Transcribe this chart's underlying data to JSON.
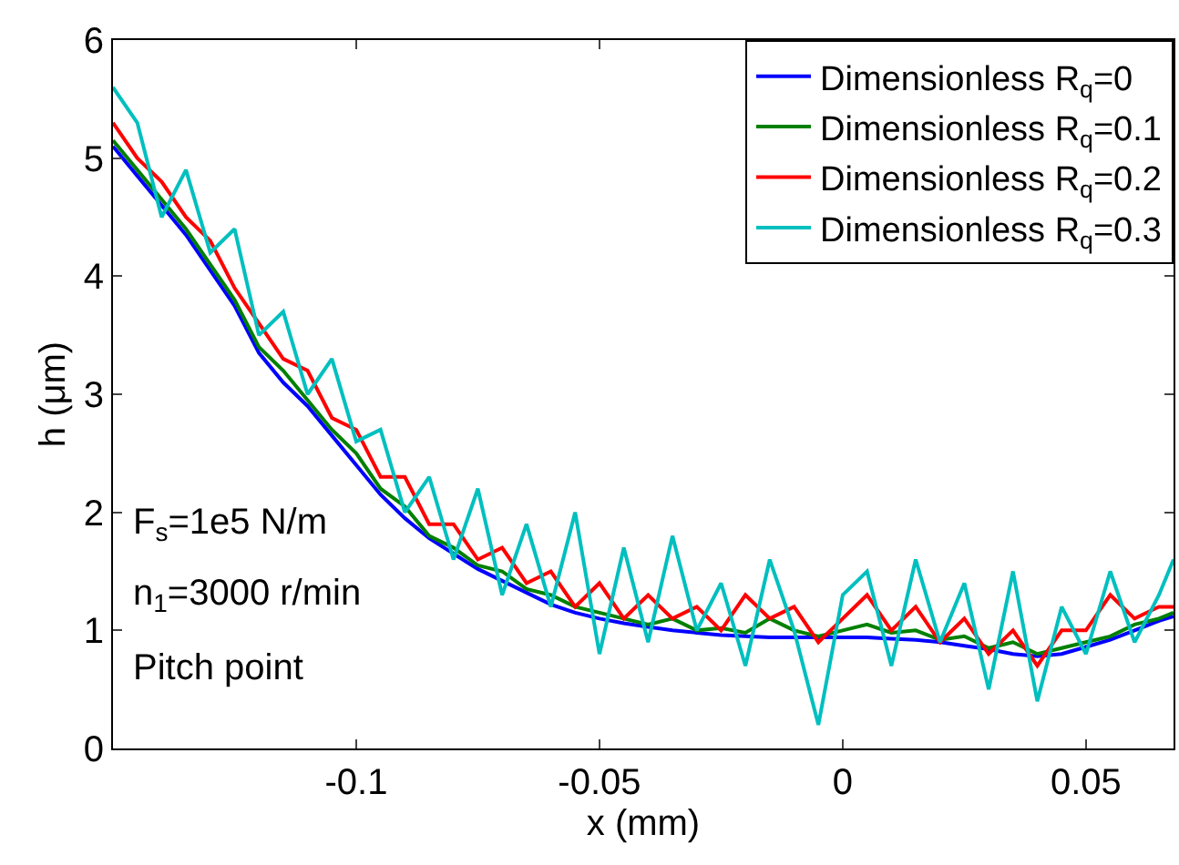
{
  "chart_data": {
    "type": "line",
    "xlabel": "x (mm)",
    "ylabel": "h (μm)",
    "x": [
      -0.15,
      -0.145,
      -0.14,
      -0.135,
      -0.13,
      -0.125,
      -0.12,
      -0.115,
      -0.11,
      -0.105,
      -0.1,
      -0.095,
      -0.09,
      -0.085,
      -0.08,
      -0.075,
      -0.07,
      -0.065,
      -0.06,
      -0.055,
      -0.05,
      -0.045,
      -0.04,
      -0.035,
      -0.03,
      -0.025,
      -0.02,
      -0.015,
      -0.01,
      -0.005,
      0,
      0.005,
      0.01,
      0.015,
      0.02,
      0.025,
      0.03,
      0.035,
      0.04,
      0.045,
      0.05,
      0.055,
      0.06,
      0.065,
      0.068
    ],
    "series": [
      {
        "name": "Dimensionless R$_{q}$=0",
        "color": "#0000ff",
        "values": [
          5.1,
          4.85,
          4.6,
          4.35,
          4.05,
          3.75,
          3.35,
          3.1,
          2.9,
          2.65,
          2.4,
          2.15,
          1.95,
          1.78,
          1.65,
          1.52,
          1.42,
          1.32,
          1.22,
          1.15,
          1.1,
          1.06,
          1.03,
          1.0,
          0.98,
          0.96,
          0.95,
          0.94,
          0.94,
          0.94,
          0.94,
          0.94,
          0.93,
          0.92,
          0.9,
          0.87,
          0.84,
          0.8,
          0.78,
          0.8,
          0.86,
          0.92,
          1.0,
          1.08,
          1.12
        ]
      },
      {
        "name": "Dimensionless R$_{q}$=0.1",
        "color": "#008000",
        "values": [
          5.15,
          4.9,
          4.65,
          4.4,
          4.1,
          3.8,
          3.4,
          3.2,
          2.95,
          2.7,
          2.5,
          2.2,
          2.05,
          1.8,
          1.7,
          1.55,
          1.5,
          1.35,
          1.3,
          1.2,
          1.15,
          1.1,
          1.05,
          1.1,
          1.0,
          1.02,
          0.98,
          1.1,
          1.0,
          0.95,
          1.0,
          1.05,
          0.98,
          1.0,
          0.92,
          0.95,
          0.85,
          0.9,
          0.8,
          0.85,
          0.9,
          0.95,
          1.05,
          1.1,
          1.15
        ]
      },
      {
        "name": "Dimensionless R$_{q}$=0.2",
        "color": "#ff0000",
        "values": [
          5.3,
          5.0,
          4.8,
          4.5,
          4.3,
          3.9,
          3.6,
          3.3,
          3.2,
          2.8,
          2.7,
          2.3,
          2.3,
          1.9,
          1.9,
          1.6,
          1.7,
          1.4,
          1.5,
          1.2,
          1.4,
          1.1,
          1.3,
          1.1,
          1.2,
          1.0,
          1.3,
          1.1,
          1.2,
          0.9,
          1.1,
          1.3,
          1.0,
          1.2,
          0.9,
          1.1,
          0.8,
          1.0,
          0.7,
          1.0,
          1.0,
          1.3,
          1.1,
          1.2,
          1.2
        ]
      },
      {
        "name": "Dimensionless R$_{q}$=0.3",
        "color": "#00bfbf",
        "values": [
          5.6,
          5.3,
          4.5,
          4.9,
          4.2,
          4.4,
          3.5,
          3.7,
          3.0,
          3.3,
          2.6,
          2.7,
          2.0,
          2.3,
          1.6,
          2.2,
          1.3,
          1.9,
          1.2,
          2.0,
          0.8,
          1.7,
          0.9,
          1.8,
          1.0,
          1.4,
          0.7,
          1.6,
          1.0,
          0.2,
          1.3,
          1.5,
          0.7,
          1.6,
          0.9,
          1.4,
          0.5,
          1.5,
          0.4,
          1.2,
          0.8,
          1.5,
          0.9,
          1.3,
          1.6
        ]
      }
    ],
    "xlim": [
      -0.15,
      0.068
    ],
    "xticks": [
      -0.1,
      -0.05,
      0,
      0.05
    ],
    "ylim": [
      0,
      6
    ],
    "yticks": [
      0,
      1,
      2,
      3,
      4,
      5,
      6
    ],
    "grid": false,
    "legend": "top right",
    "line_style": "solid",
    "marker": "none",
    "annotations": [
      "F$_{s}$=1e5 N/m",
      "n$_{1}$=3000 r/min",
      "Pitch point"
    ]
  }
}
